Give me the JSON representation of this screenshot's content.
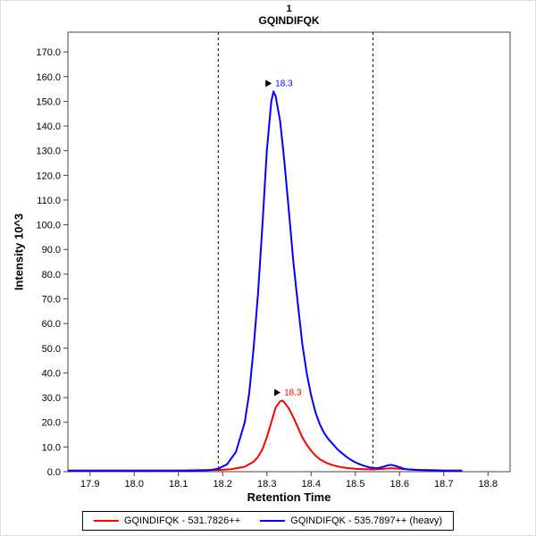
{
  "chart_data": {
    "type": "line",
    "title": "1",
    "subtitle": "GQINDIFQK",
    "xlabel": "Retention Time",
    "ylabel": "Intensity 10^3",
    "xlim": [
      17.85,
      18.85
    ],
    "ylim": [
      0,
      178
    ],
    "x_ticks": [
      17.9,
      18.0,
      18.1,
      18.2,
      18.3,
      18.4,
      18.5,
      18.6,
      18.7,
      18.8
    ],
    "y_ticks": [
      0,
      10,
      20,
      30,
      40,
      50,
      60,
      70,
      80,
      90,
      100,
      110,
      120,
      130,
      140,
      150,
      160,
      170
    ],
    "integration_boundaries": [
      18.19,
      18.54
    ],
    "legend_position": "bottom",
    "series": [
      {
        "name": "GQINDIFQK - 531.7826++",
        "color": "#ff0000",
        "peak_retention_time": "18.3",
        "points": [
          [
            17.85,
            0.5
          ],
          [
            17.9,
            0.5
          ],
          [
            17.95,
            0.5
          ],
          [
            18.0,
            0.5
          ],
          [
            18.05,
            0.5
          ],
          [
            18.1,
            0.5
          ],
          [
            18.15,
            0.6
          ],
          [
            18.19,
            0.7
          ],
          [
            18.22,
            1.0
          ],
          [
            18.25,
            2.0
          ],
          [
            18.27,
            4.0
          ],
          [
            18.28,
            6.0
          ],
          [
            18.29,
            9.0
          ],
          [
            18.3,
            14.0
          ],
          [
            18.31,
            20.0
          ],
          [
            18.32,
            26.0
          ],
          [
            18.33,
            28.5
          ],
          [
            18.335,
            28.8
          ],
          [
            18.34,
            28.0
          ],
          [
            18.35,
            25.5
          ],
          [
            18.36,
            22.0
          ],
          [
            18.37,
            18.0
          ],
          [
            18.38,
            14.0
          ],
          [
            18.39,
            11.0
          ],
          [
            18.4,
            8.5
          ],
          [
            18.41,
            6.5
          ],
          [
            18.42,
            5.0
          ],
          [
            18.43,
            4.0
          ],
          [
            18.44,
            3.2
          ],
          [
            18.45,
            2.6
          ],
          [
            18.46,
            2.1
          ],
          [
            18.48,
            1.5
          ],
          [
            18.5,
            1.2
          ],
          [
            18.52,
            1.0
          ],
          [
            18.54,
            0.9
          ],
          [
            18.56,
            1.1
          ],
          [
            18.58,
            1.4
          ],
          [
            18.6,
            1.2
          ],
          [
            18.62,
            0.9
          ],
          [
            18.65,
            0.7
          ],
          [
            18.68,
            0.6
          ],
          [
            18.7,
            0.5
          ],
          [
            18.72,
            0.5
          ],
          [
            18.74,
            0.5
          ]
        ]
      },
      {
        "name": "GQINDIFQK - 535.7897++ (heavy)",
        "color": "#0000ff",
        "peak_retention_time": "18.3",
        "points": [
          [
            17.85,
            0.3
          ],
          [
            17.9,
            0.3
          ],
          [
            17.95,
            0.3
          ],
          [
            18.0,
            0.3
          ],
          [
            18.05,
            0.3
          ],
          [
            18.1,
            0.3
          ],
          [
            18.14,
            0.4
          ],
          [
            18.17,
            0.6
          ],
          [
            18.19,
            1.2
          ],
          [
            18.21,
            3.0
          ],
          [
            18.23,
            8.0
          ],
          [
            18.25,
            20.0
          ],
          [
            18.26,
            32.0
          ],
          [
            18.27,
            50.0
          ],
          [
            18.28,
            72.0
          ],
          [
            18.29,
            100.0
          ],
          [
            18.3,
            130.0
          ],
          [
            18.31,
            150.0
          ],
          [
            18.315,
            154.0
          ],
          [
            18.32,
            152.0
          ],
          [
            18.33,
            142.0
          ],
          [
            18.34,
            125.0
          ],
          [
            18.35,
            105.0
          ],
          [
            18.36,
            85.0
          ],
          [
            18.37,
            68.0
          ],
          [
            18.38,
            52.0
          ],
          [
            18.39,
            40.0
          ],
          [
            18.4,
            31.0
          ],
          [
            18.41,
            24.0
          ],
          [
            18.42,
            19.0
          ],
          [
            18.43,
            15.5
          ],
          [
            18.44,
            13.0
          ],
          [
            18.45,
            11.0
          ],
          [
            18.46,
            9.0
          ],
          [
            18.47,
            7.5
          ],
          [
            18.48,
            6.0
          ],
          [
            18.49,
            4.8
          ],
          [
            18.5,
            3.8
          ],
          [
            18.51,
            3.0
          ],
          [
            18.52,
            2.4
          ],
          [
            18.53,
            1.8
          ],
          [
            18.54,
            1.5
          ],
          [
            18.55,
            1.4
          ],
          [
            18.56,
            1.8
          ],
          [
            18.57,
            2.4
          ],
          [
            18.58,
            2.8
          ],
          [
            18.59,
            2.4
          ],
          [
            18.6,
            1.8
          ],
          [
            18.61,
            1.2
          ],
          [
            18.62,
            0.9
          ],
          [
            18.64,
            0.7
          ],
          [
            18.66,
            0.6
          ],
          [
            18.68,
            0.5
          ],
          [
            18.7,
            0.4
          ],
          [
            18.72,
            0.3
          ],
          [
            18.74,
            0.3
          ]
        ]
      }
    ],
    "annotations": [
      {
        "text": "18.3",
        "color": "#ff0000",
        "x": 18.335,
        "y": 28.8
      },
      {
        "text": "18.3",
        "color": "#0000ff",
        "x": 18.315,
        "y": 154.0
      }
    ]
  },
  "legend": {
    "items": [
      {
        "label": "GQINDIFQK - 531.7826++",
        "color": "#ff0000"
      },
      {
        "label": "GQINDIFQK - 535.7897++ (heavy)",
        "color": "#0000ff"
      }
    ]
  }
}
